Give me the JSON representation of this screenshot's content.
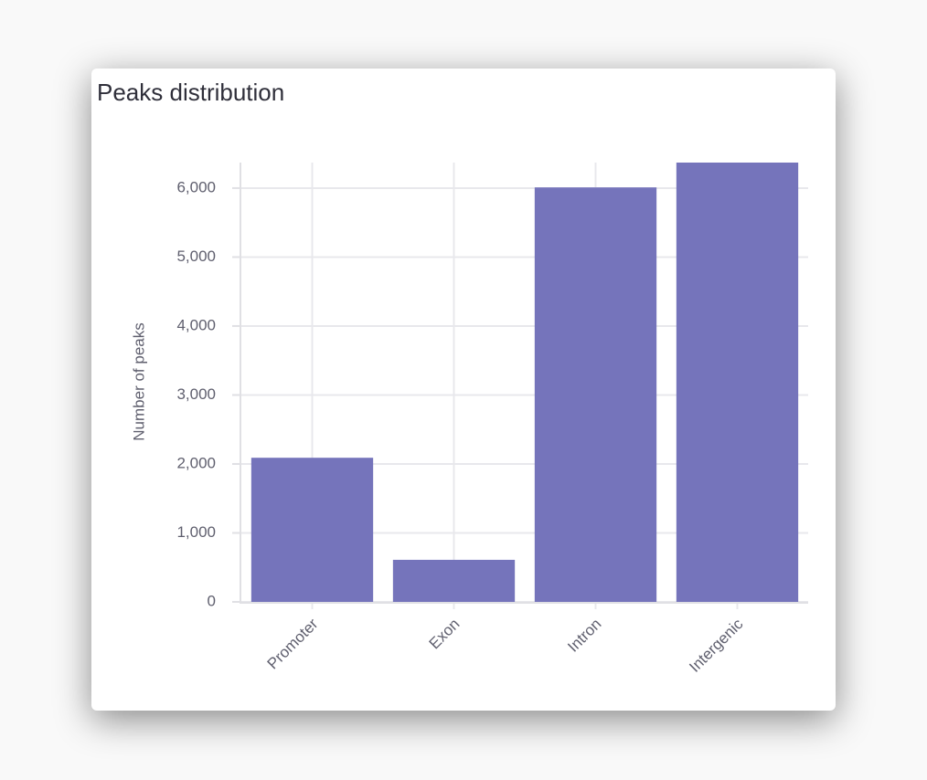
{
  "chart_data": {
    "type": "bar",
    "title": "Peaks distribution",
    "y_label": "Number of peaks",
    "categories": [
      "Promoter",
      "Exon",
      "Intron",
      "Intergenic"
    ],
    "values": [
      2090,
      610,
      6010,
      6370
    ],
    "color": "#7574bb",
    "ylim": [
      0,
      6370
    ],
    "yticks": [
      0,
      {
        "value": 1000,
        "label": "1,000"
      },
      {
        "value": 2000,
        "label": "2,000"
      },
      {
        "value": 3000,
        "label": "3,000"
      },
      {
        "value": 4000,
        "label": "4,000"
      },
      {
        "value": 5000,
        "label": "5,000"
      },
      {
        "value": 6000,
        "label": "6,000"
      }
    ],
    "grid": true
  }
}
